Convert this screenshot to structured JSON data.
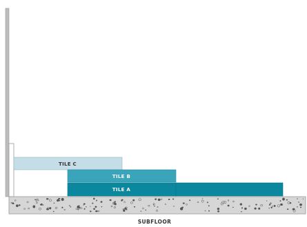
{
  "diagram": {
    "tiles": [
      {
        "id": "tile-c",
        "label": "TILE C",
        "fill": "#c4dde6",
        "text_color": "#333333"
      },
      {
        "id": "tile-b",
        "label": "TILE B",
        "fill": "#3aa4bb",
        "text_color": "#ffffff"
      },
      {
        "id": "tile-a",
        "label": "TILE A",
        "fill": "#0b889d",
        "text_color": "#ffffff"
      }
    ],
    "subfloor": {
      "label": "SUBFLOOR",
      "fill": "#d6d6d6",
      "speckle_color": "#555555"
    },
    "wall_color": "#bdbdbd",
    "outline_color": "#9a9a9a"
  }
}
